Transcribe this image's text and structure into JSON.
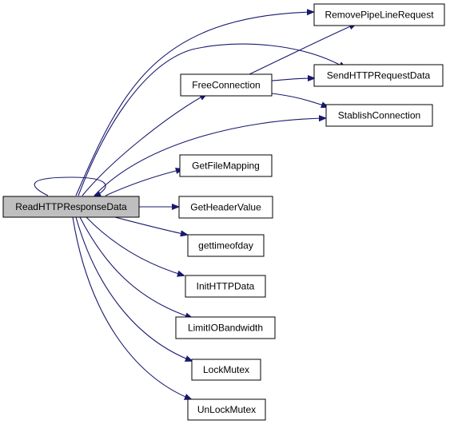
{
  "graph": {
    "colors": {
      "edge": "#191970",
      "root_fill": "#bfbfbf",
      "node_fill": "#ffffff",
      "node_border": "#000000"
    },
    "nodes": {
      "read_http_response_data": "ReadHTTPResponseData",
      "remove_pipe_line_request": "RemovePipeLineRequest",
      "free_connection": "FreeConnection",
      "send_http_request_data": "SendHTTPRequestData",
      "stablish_connection": "StablishConnection",
      "get_file_mapping": "GetFileMapping",
      "get_header_value": "GetHeaderValue",
      "gettimeofday": "gettimeofday",
      "init_http_data": "InitHTTPData",
      "limit_io_bandwidth": "LimitIOBandwidth",
      "lock_mutex": "LockMutex",
      "unlock_mutex": "UnLockMutex"
    },
    "edges": [
      [
        "read_http_response_data",
        "read_http_response_data"
      ],
      [
        "read_http_response_data",
        "remove_pipe_line_request"
      ],
      [
        "read_http_response_data",
        "send_http_request_data"
      ],
      [
        "read_http_response_data",
        "free_connection"
      ],
      [
        "read_http_response_data",
        "stablish_connection"
      ],
      [
        "read_http_response_data",
        "get_file_mapping"
      ],
      [
        "read_http_response_data",
        "get_header_value"
      ],
      [
        "read_http_response_data",
        "gettimeofday"
      ],
      [
        "read_http_response_data",
        "init_http_data"
      ],
      [
        "read_http_response_data",
        "limit_io_bandwidth"
      ],
      [
        "read_http_response_data",
        "lock_mutex"
      ],
      [
        "read_http_response_data",
        "unlock_mutex"
      ],
      [
        "free_connection",
        "remove_pipe_line_request"
      ],
      [
        "free_connection",
        "send_http_request_data"
      ],
      [
        "free_connection",
        "stablish_connection"
      ]
    ]
  }
}
